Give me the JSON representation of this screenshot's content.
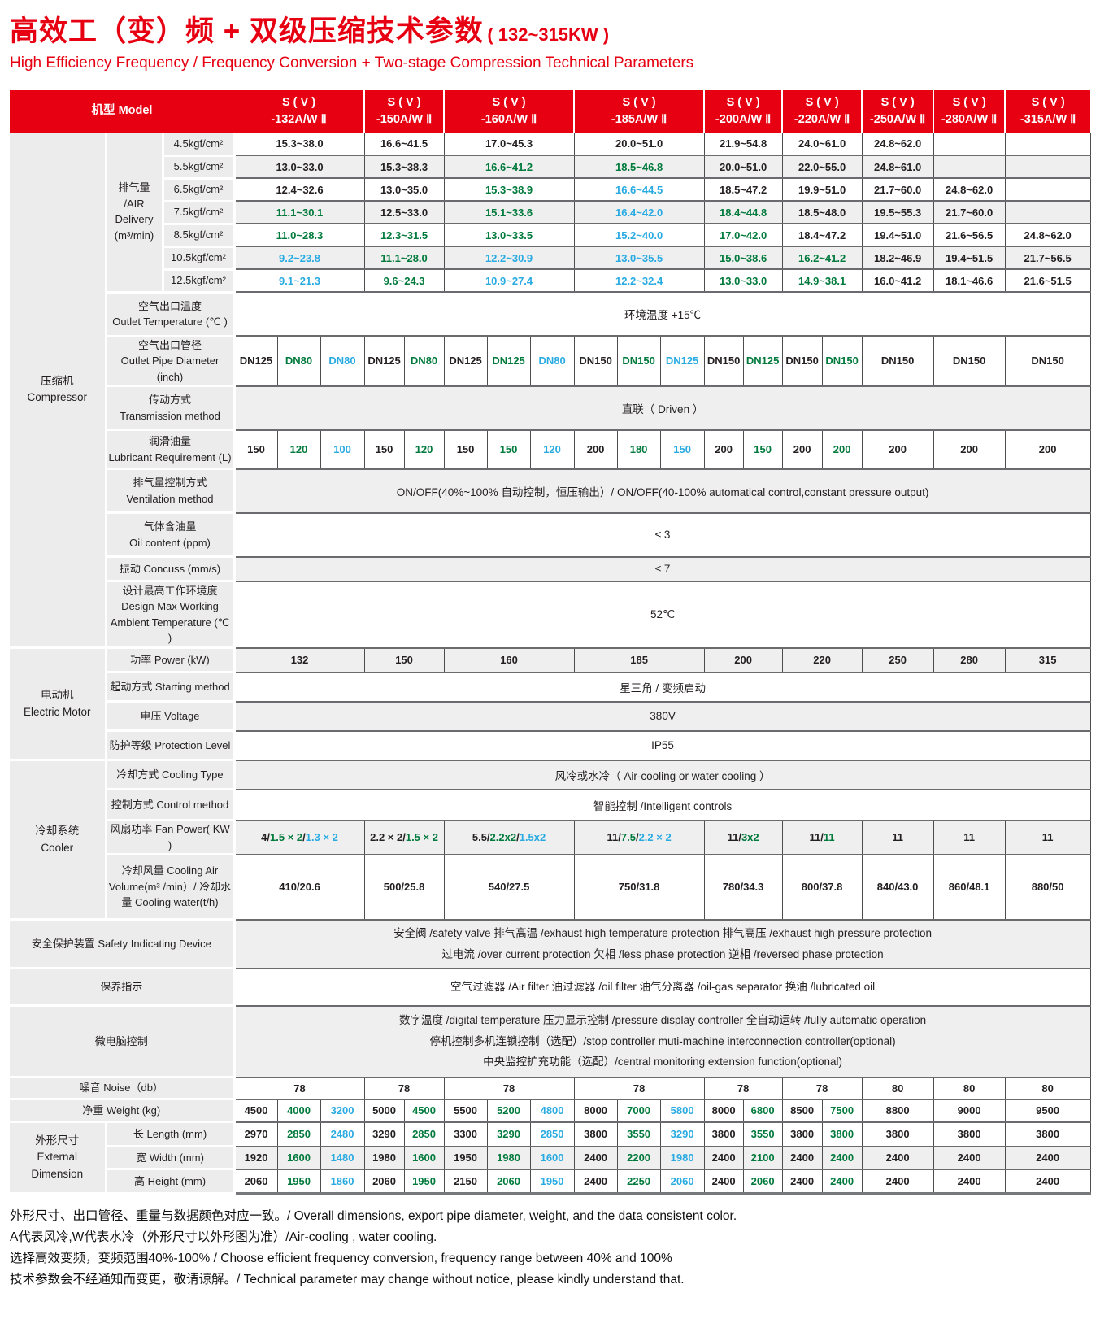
{
  "page": {
    "title_zh": "高效工（变）频 + 双级压缩技术参数",
    "title_range": "( 132~315KW )",
    "subtitle_en": "High Efficiency Frequency / Frequency Conversion + Two-stage Compression Technical Parameters"
  },
  "colors": {
    "accent_red": "#e60012",
    "value_black": "#231f20",
    "value_green": "#007a3c",
    "value_blue": "#29abe2"
  },
  "table": {
    "model_header_label": "机型 Model",
    "air_label": "排气量 /AIR Delivery (m³/min)",
    "models": [
      {
        "line1": "S ( V )",
        "line2": "-132A/W Ⅱ",
        "subcols": 3
      },
      {
        "line1": "S ( V )",
        "line2": "-150A/W Ⅱ",
        "subcols": 2
      },
      {
        "line1": "S ( V )",
        "line2": "-160A/W Ⅱ",
        "subcols": 3
      },
      {
        "line1": "S ( V )",
        "line2": "-185A/W Ⅱ",
        "subcols": 3
      },
      {
        "line1": "S ( V )",
        "line2": "-200A/W Ⅱ",
        "subcols": 2
      },
      {
        "line1": "S ( V )",
        "line2": "-220A/W Ⅱ",
        "subcols": 2
      },
      {
        "line1": "S ( V )",
        "line2": "-250A/W Ⅱ",
        "subcols": 1
      },
      {
        "line1": "S ( V )",
        "line2": "-280A/W Ⅱ",
        "subcols": 1
      },
      {
        "line1": "S ( V )",
        "line2": "-315A/W Ⅱ",
        "subcols": 1
      }
    ],
    "sections": [
      {
        "zh": "压缩机",
        "en": "Compressor",
        "start": 0,
        "rows": 15
      },
      {
        "zh": "电动机",
        "en": "Electric Motor",
        "start": 15,
        "rows": 4
      },
      {
        "zh": "冷却系统",
        "en": "Cooler",
        "start": 19,
        "rows": 4
      },
      {
        "zh": "外形尺寸",
        "en": "External Dimension",
        "start": 28,
        "rows": 3
      }
    ],
    "rows": [
      {
        "kind": "air",
        "pressure": "4.5kgf/cm²",
        "cells": [
          [
            "15.3~38.0",
            "k"
          ],
          [
            "16.6~41.5",
            "k"
          ],
          [
            "17.0~45.3",
            "k"
          ],
          [
            "20.0~51.0",
            "k"
          ],
          [
            "21.9~54.8",
            "k"
          ],
          [
            "24.0~61.0",
            "k"
          ],
          [
            "24.8~62.0",
            "k"
          ],
          [
            "",
            ""
          ],
          [
            "",
            ""
          ]
        ]
      },
      {
        "kind": "air",
        "pressure": "5.5kgf/cm²",
        "cells": [
          [
            "13.0~33.0",
            "k"
          ],
          [
            "15.3~38.3",
            "k"
          ],
          [
            "16.6~41.2",
            "g"
          ],
          [
            "18.5~46.8",
            "g"
          ],
          [
            "20.0~51.0",
            "k"
          ],
          [
            "22.0~55.0",
            "k"
          ],
          [
            "24.8~61.0",
            "k"
          ],
          [
            "",
            ""
          ],
          [
            "",
            ""
          ]
        ]
      },
      {
        "kind": "air",
        "pressure": "6.5kgf/cm²",
        "cells": [
          [
            "12.4~32.6",
            "k"
          ],
          [
            "13.0~35.0",
            "k"
          ],
          [
            "15.3~38.9",
            "g"
          ],
          [
            "16.6~44.5",
            "b"
          ],
          [
            "18.5~47.2",
            "k"
          ],
          [
            "19.9~51.0",
            "k"
          ],
          [
            "21.7~60.0",
            "k"
          ],
          [
            "24.8~62.0",
            "k"
          ],
          [
            "",
            ""
          ]
        ]
      },
      {
        "kind": "air",
        "pressure": "7.5kgf/cm²",
        "cells": [
          [
            "11.1~30.1",
            "g"
          ],
          [
            "12.5~33.0",
            "k"
          ],
          [
            "15.1~33.6",
            "g"
          ],
          [
            "16.4~42.0",
            "b"
          ],
          [
            "18.4~44.8",
            "g"
          ],
          [
            "18.5~48.0",
            "k"
          ],
          [
            "19.5~55.3",
            "k"
          ],
          [
            "21.7~60.0",
            "k"
          ],
          [
            "",
            ""
          ]
        ]
      },
      {
        "kind": "air",
        "pressure": "8.5kgf/cm²",
        "cells": [
          [
            "11.0~28.3",
            "g"
          ],
          [
            "12.3~31.5",
            "g"
          ],
          [
            "13.0~33.5",
            "g"
          ],
          [
            "15.2~40.0",
            "b"
          ],
          [
            "17.0~42.0",
            "g"
          ],
          [
            "18.4~47.2",
            "k"
          ],
          [
            "19.4~51.0",
            "k"
          ],
          [
            "21.6~56.5",
            "k"
          ],
          [
            "24.8~62.0",
            "k"
          ]
        ]
      },
      {
        "kind": "air",
        "pressure": "10.5kgf/cm²",
        "cells": [
          [
            "9.2~23.8",
            "b"
          ],
          [
            "11.1~28.0",
            "g"
          ],
          [
            "12.2~30.9",
            "b"
          ],
          [
            "13.0~35.5",
            "b"
          ],
          [
            "15.0~38.6",
            "g"
          ],
          [
            "16.2~41.2",
            "g"
          ],
          [
            "18.2~46.9",
            "k"
          ],
          [
            "19.4~51.5",
            "k"
          ],
          [
            "21.7~56.5",
            "k"
          ]
        ]
      },
      {
        "kind": "air",
        "pressure": "12.5kgf/cm²",
        "cells": [
          [
            "9.1~21.3",
            "b"
          ],
          [
            "9.6~24.3",
            "g"
          ],
          [
            "10.9~27.4",
            "b"
          ],
          [
            "12.2~32.4",
            "b"
          ],
          [
            "13.0~33.0",
            "g"
          ],
          [
            "14.9~38.1",
            "g"
          ],
          [
            "16.0~41.2",
            "k"
          ],
          [
            "18.1~46.6",
            "k"
          ],
          [
            "21.6~51.5",
            "k"
          ]
        ]
      },
      {
        "kind": "span",
        "zh": "空气出口温度",
        "en": "Outlet Temperature (℃ )",
        "text": "环境温度 +15℃"
      },
      {
        "kind": "cells",
        "zh": "空气出口管径",
        "en": "Outlet Pipe Diameter (inch)",
        "cells": [
          [
            "DN125",
            "k"
          ],
          [
            "DN80",
            "g"
          ],
          [
            "DN80",
            "b"
          ],
          [
            "DN125",
            "k"
          ],
          [
            "DN80",
            "g"
          ],
          [
            "DN125",
            "k"
          ],
          [
            "DN125",
            "g"
          ],
          [
            "DN80",
            "b"
          ],
          [
            "DN150",
            "k"
          ],
          [
            "DN150",
            "g"
          ],
          [
            "DN125",
            "b"
          ],
          [
            "DN150",
            "k"
          ],
          [
            "DN125",
            "g"
          ],
          [
            "DN150",
            "k"
          ],
          [
            "DN150",
            "g"
          ],
          [
            "DN150",
            "k"
          ],
          [
            "DN150",
            "k"
          ],
          [
            "DN150",
            "k"
          ]
        ]
      },
      {
        "kind": "span",
        "zh": "传动方式",
        "en": "Transmission method",
        "text": "直联（ Driven ）"
      },
      {
        "kind": "cells",
        "zh": "润滑油量",
        "en": "Lubricant Requirement (L)",
        "cells": [
          [
            "150",
            "k"
          ],
          [
            "120",
            "g"
          ],
          [
            "100",
            "b"
          ],
          [
            "150",
            "k"
          ],
          [
            "120",
            "g"
          ],
          [
            "150",
            "k"
          ],
          [
            "150",
            "g"
          ],
          [
            "120",
            "b"
          ],
          [
            "200",
            "k"
          ],
          [
            "180",
            "g"
          ],
          [
            "150",
            "b"
          ],
          [
            "200",
            "k"
          ],
          [
            "150",
            "g"
          ],
          [
            "200",
            "k"
          ],
          [
            "200",
            "g"
          ],
          [
            "200",
            "k"
          ],
          [
            "200",
            "k"
          ],
          [
            "200",
            "k"
          ]
        ]
      },
      {
        "kind": "span",
        "zh": "排气量控制方式",
        "en": "Ventilation method",
        "text": "ON/OFF(40%~100% 自动控制，恒压输出）/ ON/OFF(40-100% automatical control,constant pressure output)"
      },
      {
        "kind": "span",
        "zh": "气体含油量",
        "en": "Oil content (ppm)",
        "text": "≤ 3"
      },
      {
        "kind": "span",
        "label": "振动 Concuss (mm/s)",
        "text": "≤ 7"
      },
      {
        "kind": "span",
        "zh": "设计最高工作环境度",
        "en": "Design Max Working Ambient  Temperature (℃ )",
        "text": "52℃"
      },
      {
        "kind": "permodel",
        "label": "功率 Power (kW)",
        "values": [
          "132",
          "150",
          "160",
          "185",
          "200",
          "220",
          "250",
          "280",
          "315"
        ]
      },
      {
        "kind": "span",
        "label": "起动方式 Starting method",
        "text": "星三角 / 变频启动"
      },
      {
        "kind": "span",
        "label": "电压 Voltage",
        "text": "380V"
      },
      {
        "kind": "span",
        "label": "防护等级 Protection Level",
        "text": "IP55"
      },
      {
        "kind": "span",
        "label": "冷却方式 Cooling Type",
        "text": "风冷或水冷（ Air-cooling or water cooling ）"
      },
      {
        "kind": "span",
        "label": "控制方式 Control method",
        "text": "智能控制 /Intelligent controls"
      },
      {
        "kind": "fan",
        "label": "风扇功率 Fan Power( KW )",
        "cells": [
          [
            [
              "4/",
              "k"
            ],
            [
              "1.5 × 2",
              "g"
            ],
            [
              "/",
              "k"
            ],
            [
              "1.3 × 2",
              "b"
            ]
          ],
          [
            [
              "2.2 × 2/",
              "k"
            ],
            [
              "1.5 × 2",
              "g"
            ]
          ],
          [
            [
              "5.5/",
              "k"
            ],
            [
              "2.2x2",
              "g"
            ],
            [
              "/",
              "k"
            ],
            [
              "1.5x2",
              "b"
            ]
          ],
          [
            [
              "11/",
              "k"
            ],
            [
              "7.5",
              "g"
            ],
            [
              "/",
              "k"
            ],
            [
              "2.2 × 2",
              "b"
            ]
          ],
          [
            [
              "11/",
              "k"
            ],
            [
              "3x2",
              "g"
            ]
          ],
          [
            [
              "11/",
              "k"
            ],
            [
              "11",
              "g"
            ]
          ],
          [
            [
              "11",
              "k"
            ]
          ],
          [
            [
              "11",
              "k"
            ]
          ],
          [
            [
              "11",
              "k"
            ]
          ]
        ]
      },
      {
        "kind": "permodel",
        "label": "冷却风量 Cooling Air Volume(m³ /min）/ 冷却水量 Cooling water(t/h)",
        "values": [
          "410/20.6",
          "500/25.8",
          "540/27.5",
          "750/31.8",
          "780/34.3",
          "800/37.8",
          "840/43.0",
          "860/48.1",
          "880/50"
        ]
      },
      {
        "kind": "wide",
        "label": "安全保护装置 Safety Indicating Device",
        "lines": [
          "安全阀 /safety valve  排气高温 /exhaust high temperature protection  排气高压 /exhaust high pressure protection",
          "过电流 /over current protection  欠相 /less phase protection  逆相 /reversed phase  protection"
        ]
      },
      {
        "kind": "wide",
        "label": "保养指示",
        "lines": [
          "空气过滤器 /Air filter  油过滤器 /oil filter   油气分离器 /oil-gas separator  换油 /lubricated oil"
        ]
      },
      {
        "kind": "wide",
        "label": "微电脑控制",
        "lines": [
          "数字温度 /digital temperature  压力显示控制 /pressure display controller  全自动运转 /fully automatic operation",
          "停机控制多机连锁控制（选配）/stop controller muti-machine interconnection controller(optional)",
          "中央监控扩充功能（选配）/central monitoring extension function(optional)"
        ]
      },
      {
        "kind": "widepermodel",
        "label": "噪音 Noise（db）",
        "values": [
          "78",
          "78",
          "78",
          "78",
          "78",
          "78",
          "80",
          "80",
          "80"
        ]
      },
      {
        "kind": "widecells",
        "label": "净重 Weight (kg)",
        "cells": [
          [
            "4500",
            "k"
          ],
          [
            "4000",
            "g"
          ],
          [
            "3200",
            "b"
          ],
          [
            "5000",
            "k"
          ],
          [
            "4500",
            "g"
          ],
          [
            "5500",
            "k"
          ],
          [
            "5200",
            "g"
          ],
          [
            "4800",
            "b"
          ],
          [
            "8000",
            "k"
          ],
          [
            "7000",
            "g"
          ],
          [
            "5800",
            "b"
          ],
          [
            "8000",
            "k"
          ],
          [
            "6800",
            "g"
          ],
          [
            "8500",
            "k"
          ],
          [
            "7500",
            "g"
          ],
          [
            "8800",
            "k"
          ],
          [
            "9000",
            "k"
          ],
          [
            "9500",
            "k"
          ]
        ]
      },
      {
        "kind": "dim",
        "label": "长 Length  (mm)",
        "cells": [
          [
            "2970",
            "k"
          ],
          [
            "2850",
            "g"
          ],
          [
            "2480",
            "b"
          ],
          [
            "3290",
            "k"
          ],
          [
            "2850",
            "g"
          ],
          [
            "3300",
            "k"
          ],
          [
            "3290",
            "g"
          ],
          [
            "2850",
            "b"
          ],
          [
            "3800",
            "k"
          ],
          [
            "3550",
            "g"
          ],
          [
            "3290",
            "b"
          ],
          [
            "3800",
            "k"
          ],
          [
            "3550",
            "g"
          ],
          [
            "3800",
            "k"
          ],
          [
            "3800",
            "g"
          ],
          [
            "3800",
            "k"
          ],
          [
            "3800",
            "k"
          ],
          [
            "3800",
            "k"
          ]
        ]
      },
      {
        "kind": "dim",
        "label": "宽 Width  (mm)",
        "cells": [
          [
            "1920",
            "k"
          ],
          [
            "1600",
            "g"
          ],
          [
            "1480",
            "b"
          ],
          [
            "1980",
            "k"
          ],
          [
            "1600",
            "g"
          ],
          [
            "1950",
            "k"
          ],
          [
            "1980",
            "g"
          ],
          [
            "1600",
            "b"
          ],
          [
            "2400",
            "k"
          ],
          [
            "2200",
            "g"
          ],
          [
            "1980",
            "b"
          ],
          [
            "2400",
            "k"
          ],
          [
            "2100",
            "g"
          ],
          [
            "2400",
            "k"
          ],
          [
            "2400",
            "g"
          ],
          [
            "2400",
            "k"
          ],
          [
            "2400",
            "k"
          ],
          [
            "2400",
            "k"
          ]
        ]
      },
      {
        "kind": "dim",
        "label": "高 Height  (mm)",
        "cells": [
          [
            "2060",
            "k"
          ],
          [
            "1950",
            "g"
          ],
          [
            "1860",
            "b"
          ],
          [
            "2060",
            "k"
          ],
          [
            "1950",
            "g"
          ],
          [
            "2150",
            "k"
          ],
          [
            "2060",
            "g"
          ],
          [
            "1950",
            "b"
          ],
          [
            "2400",
            "k"
          ],
          [
            "2250",
            "g"
          ],
          [
            "2060",
            "b"
          ],
          [
            "2400",
            "k"
          ],
          [
            "2060",
            "g"
          ],
          [
            "2400",
            "k"
          ],
          [
            "2400",
            "g"
          ],
          [
            "2400",
            "k"
          ],
          [
            "2400",
            "k"
          ],
          [
            "2400",
            "k"
          ]
        ]
      }
    ]
  },
  "footnotes": [
    "外形尺寸、出口管径、重量与数据颜色对应一致。/ Overall dimensions, export pipe diameter, weight, and the data consistent color.",
    "A代表风冷,W代表水冷（外形尺寸以外形图为准）/Air-cooling , water cooling.",
    "选择高效变频，变频范围40%-100% / Choose efficient frequency conversion, frequency range between 40% and 100%",
    "技术参数会不经通知而变更，敬请谅解。/ Technical parameter may change without notice, please kindly understand that."
  ]
}
